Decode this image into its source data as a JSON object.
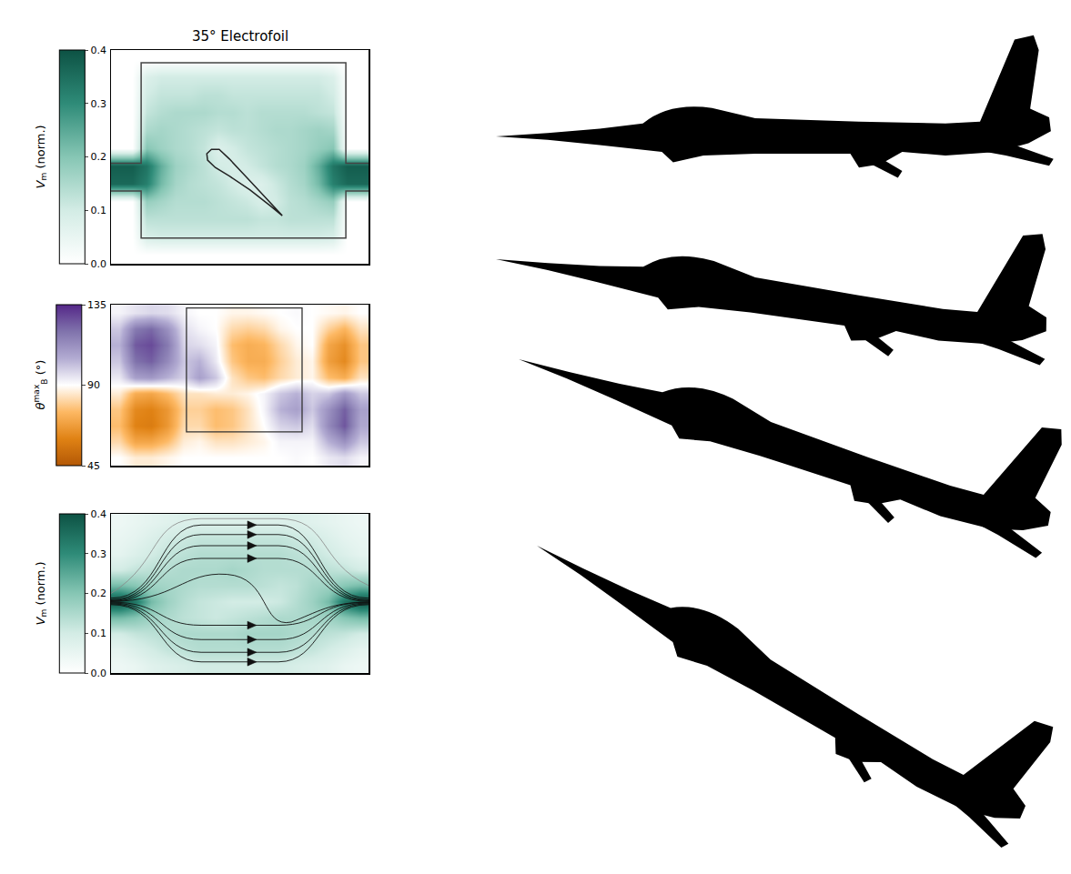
{
  "chart_data": [
    {
      "type": "heatmap",
      "title": "35° Electrofoil",
      "colorbar_label": {
        "symbol": "V",
        "subscript": "m",
        "unit": "(norm.)"
      },
      "colorbar": {
        "range": [
          0,
          0.4
        ],
        "ticks": [
          {
            "value": 0,
            "label": "0.0"
          },
          {
            "value": 0.1,
            "label": "0.1"
          },
          {
            "value": 0.2,
            "label": "0.2"
          },
          {
            "value": 0.3,
            "label": "0.3"
          },
          {
            "value": 0.4,
            "label": "0.4"
          }
        ]
      },
      "colors": [
        "#ffffff",
        "#d3ece5",
        "#86c6b4",
        "#2e8b78",
        "#0d5244"
      ],
      "tick_labels": false,
      "z": [
        [
          0,
          0,
          0,
          0,
          0,
          0,
          0,
          0,
          0,
          0,
          0,
          0,
          0,
          0,
          0,
          0,
          0,
          0
        ],
        [
          0,
          0,
          0.08,
          0.1,
          0.1,
          0.1,
          0.1,
          0.1,
          0.1,
          0.1,
          0.1,
          0.1,
          0.1,
          0.1,
          0.1,
          0.08,
          0,
          0
        ],
        [
          0,
          0,
          0.1,
          0.12,
          0.12,
          0.12,
          0.13,
          0.13,
          0.12,
          0.12,
          0.12,
          0.12,
          0.12,
          0.12,
          0.12,
          0.1,
          0,
          0
        ],
        [
          0,
          0,
          0.12,
          0.14,
          0.15,
          0.15,
          0.15,
          0.14,
          0.14,
          0.13,
          0.14,
          0.14,
          0.14,
          0.14,
          0.13,
          0.12,
          0,
          0
        ],
        [
          0,
          0,
          0.15,
          0.16,
          0.15,
          0.14,
          0.13,
          0.12,
          0.13,
          0.13,
          0.14,
          0.15,
          0.15,
          0.16,
          0.17,
          0.16,
          0,
          0
        ],
        [
          0,
          0,
          0.2,
          0.17,
          0.15,
          0.14,
          0.12,
          0.08,
          0.1,
          0.12,
          0.13,
          0.14,
          0.15,
          0.16,
          0.18,
          0.2,
          0,
          0
        ],
        [
          0.38,
          0.38,
          0.34,
          0.24,
          0.17,
          0.15,
          0.13,
          0.1,
          0.09,
          0.1,
          0.12,
          0.14,
          0.15,
          0.17,
          0.24,
          0.34,
          0.38,
          0.38
        ],
        [
          0.36,
          0.36,
          0.32,
          0.22,
          0.16,
          0.14,
          0.13,
          0.12,
          0.1,
          0.08,
          0.08,
          0.11,
          0.14,
          0.16,
          0.22,
          0.32,
          0.36,
          0.36
        ],
        [
          0,
          0,
          0.18,
          0.16,
          0.14,
          0.14,
          0.14,
          0.13,
          0.12,
          0.11,
          0.09,
          0.1,
          0.13,
          0.14,
          0.16,
          0.18,
          0,
          0
        ],
        [
          0,
          0,
          0.13,
          0.13,
          0.13,
          0.13,
          0.13,
          0.13,
          0.13,
          0.13,
          0.12,
          0.12,
          0.13,
          0.13,
          0.13,
          0.13,
          0,
          0
        ],
        [
          0,
          0,
          0.09,
          0.1,
          0.1,
          0.1,
          0.1,
          0.1,
          0.1,
          0.1,
          0.1,
          0.1,
          0.1,
          0.1,
          0.1,
          0.09,
          0,
          0
        ],
        [
          0,
          0,
          0,
          0,
          0,
          0,
          0,
          0,
          0,
          0,
          0,
          0,
          0,
          0,
          0,
          0,
          0,
          0
        ]
      ]
    },
    {
      "type": "heatmap",
      "colorbar_label": {
        "symbol": "θ",
        "subscript": "B",
        "superscript": "max",
        "unit": "(°)"
      },
      "colorbar": {
        "range": [
          45,
          135
        ],
        "ticks": [
          45,
          90,
          135
        ]
      },
      "colors": [
        "#b35806",
        "#e08214",
        "#fdb863",
        "#ffffff",
        "#b2abd2",
        "#8073ac",
        "#542788"
      ],
      "tick_labels": false,
      "z": [
        [
          92,
          95,
          97,
          96,
          92,
          90,
          90,
          88,
          88,
          89,
          90,
          91,
          90,
          89,
          88,
          90
        ],
        [
          100,
          118,
          122,
          112,
          96,
          92,
          90,
          82,
          80,
          82,
          88,
          90,
          90,
          80,
          74,
          84
        ],
        [
          104,
          125,
          128,
          118,
          98,
          96,
          92,
          76,
          72,
          74,
          82,
          88,
          90,
          70,
          64,
          78
        ],
        [
          100,
          120,
          124,
          114,
          100,
          104,
          94,
          78,
          72,
          72,
          80,
          86,
          88,
          68,
          62,
          78
        ],
        [
          94,
          108,
          110,
          104,
          98,
          108,
          100,
          84,
          78,
          76,
          82,
          86,
          88,
          76,
          72,
          84
        ],
        [
          86,
          72,
          70,
          76,
          84,
          84,
          86,
          86,
          88,
          92,
          100,
          104,
          98,
          100,
          110,
          100
        ],
        [
          78,
          62,
          60,
          66,
          80,
          80,
          76,
          78,
          84,
          92,
          104,
          108,
          100,
          112,
          124,
          108
        ],
        [
          76,
          60,
          58,
          66,
          82,
          82,
          76,
          78,
          84,
          90,
          98,
          100,
          96,
          114,
          126,
          106
        ],
        [
          82,
          70,
          70,
          76,
          86,
          88,
          84,
          84,
          86,
          88,
          92,
          92,
          92,
          104,
          112,
          100
        ],
        [
          90,
          86,
          86,
          88,
          90,
          90,
          90,
          90,
          90,
          90,
          90,
          91,
          90,
          94,
          96,
          92
        ]
      ]
    },
    {
      "type": "heatmap",
      "colorbar_label": {
        "symbol": "V",
        "subscript": "m",
        "unit": "(norm.)"
      },
      "colorbar": {
        "range": [
          0,
          0.4
        ],
        "ticks": [
          {
            "value": 0,
            "label": "0.0"
          },
          {
            "value": 0.1,
            "label": "0.1"
          },
          {
            "value": 0.2,
            "label": "0.2"
          },
          {
            "value": 0.3,
            "label": "0.3"
          },
          {
            "value": 0.4,
            "label": "0.4"
          }
        ]
      },
      "colors": [
        "#ffffff",
        "#d3ece5",
        "#86c6b4",
        "#2e8b78",
        "#0d5244"
      ],
      "tick_labels": false,
      "z": [
        [
          0.04,
          0.05,
          0.06,
          0.07,
          0.08,
          0.08,
          0.08,
          0.08,
          0.08,
          0.08,
          0.08,
          0.08,
          0.07,
          0.06,
          0.05,
          0.04
        ],
        [
          0.05,
          0.06,
          0.08,
          0.1,
          0.11,
          0.12,
          0.12,
          0.12,
          0.12,
          0.12,
          0.12,
          0.11,
          0.1,
          0.08,
          0.06,
          0.05
        ],
        [
          0.06,
          0.08,
          0.1,
          0.12,
          0.13,
          0.14,
          0.14,
          0.14,
          0.14,
          0.14,
          0.14,
          0.13,
          0.12,
          0.1,
          0.08,
          0.06
        ],
        [
          0.1,
          0.12,
          0.13,
          0.14,
          0.15,
          0.15,
          0.15,
          0.16,
          0.15,
          0.14,
          0.14,
          0.14,
          0.14,
          0.13,
          0.12,
          0.1
        ],
        [
          0.22,
          0.2,
          0.17,
          0.16,
          0.15,
          0.14,
          0.14,
          0.14,
          0.14,
          0.13,
          0.12,
          0.13,
          0.16,
          0.17,
          0.2,
          0.22
        ],
        [
          0.4,
          0.34,
          0.22,
          0.17,
          0.14,
          0.12,
          0.11,
          0.1,
          0.1,
          0.1,
          0.11,
          0.14,
          0.17,
          0.22,
          0.34,
          0.4
        ],
        [
          0.22,
          0.2,
          0.17,
          0.15,
          0.13,
          0.12,
          0.11,
          0.12,
          0.13,
          0.14,
          0.15,
          0.15,
          0.16,
          0.17,
          0.2,
          0.22
        ],
        [
          0.1,
          0.12,
          0.13,
          0.14,
          0.15,
          0.15,
          0.15,
          0.15,
          0.16,
          0.16,
          0.16,
          0.15,
          0.14,
          0.13,
          0.12,
          0.1
        ],
        [
          0.06,
          0.08,
          0.1,
          0.12,
          0.13,
          0.14,
          0.14,
          0.14,
          0.14,
          0.14,
          0.14,
          0.13,
          0.12,
          0.1,
          0.08,
          0.06
        ],
        [
          0.04,
          0.05,
          0.07,
          0.08,
          0.09,
          0.1,
          0.1,
          0.1,
          0.1,
          0.1,
          0.1,
          0.09,
          0.08,
          0.07,
          0.05,
          0.04
        ]
      ]
    }
  ]
}
